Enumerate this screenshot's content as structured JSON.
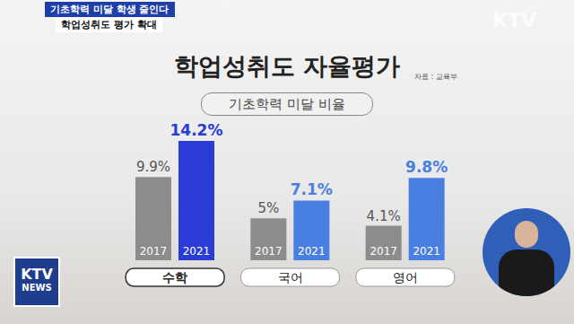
{
  "header": {
    "headline": "기초학력 미달 학생 줄인다",
    "subheadline": "학업성취도 평가 확대"
  },
  "watermark": "KTV",
  "logo": [
    "KTV",
    "NEWS"
  ],
  "chart_data": {
    "type": "bar",
    "title": "학업성취도 자율평가",
    "subtitle": "기초학력 미달 비율",
    "annotations": [
      "자료 : 교육부"
    ],
    "categories": [
      "수학",
      "국어",
      "영어"
    ],
    "series": [
      {
        "name": "2017",
        "color": "#8c8c8c",
        "values": [
          9.9,
          5,
          4.1
        ],
        "value_labels": [
          "9.9%",
          "5%",
          "4.1%"
        ]
      },
      {
        "name": "2021",
        "colors": [
          "#2b3bd6",
          "#4a7fe2",
          "#4a7fe2"
        ],
        "values": [
          14.2,
          7.1,
          9.8
        ],
        "value_labels": [
          "14.2%",
          "7.1%",
          "9.8%"
        ]
      }
    ],
    "ylim": [
      0,
      16
    ],
    "data_labels": true,
    "tick_labels": "x"
  }
}
